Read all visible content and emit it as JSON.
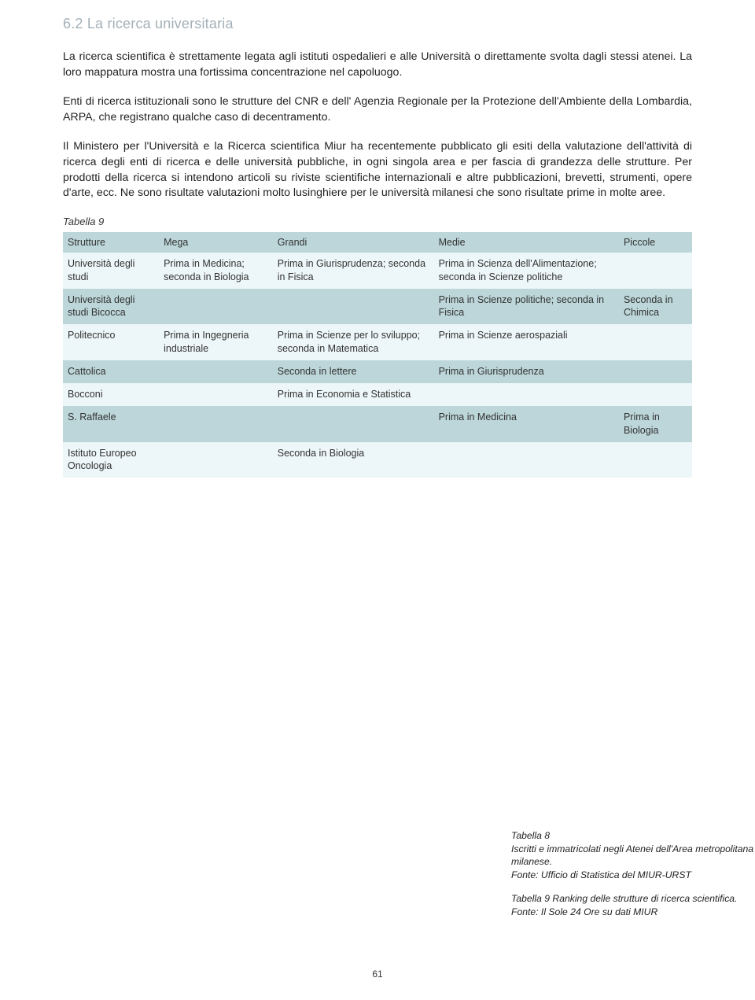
{
  "section": {
    "heading": "6.2 La ricerca universitaria",
    "para1": "La ricerca scientifica è strettamente legata agli istituti ospedalieri e alle Università o direttamente svolta dagli stessi atenei. La loro mappatura mostra una fortissima concentrazione nel capoluogo.",
    "para2": "Enti di ricerca istituzionali sono le strutture del CNR e dell' Agenzia Regionale per la Protezione dell'Ambiente della Lombardia, ARPA, che registrano qualche caso di decentramento.",
    "para3": "Il Ministero per l'Università e la Ricerca scientifica Miur ha recentemente pubblicato gli esiti della valutazione dell'attività di ricerca degli enti di ricerca e delle università pubbliche, in ogni singola area e per fascia di grandezza delle strutture. Per prodotti della ricerca si intendono articoli su riviste scientifiche internazionali e altre pubblicazioni, brevetti, strumenti, opere d'arte, ecc. Ne sono risultate valutazioni molto lusinghiere per le università milanesi che sono risultate prime in molte aree."
  },
  "table9": {
    "caption": "Tabella 9",
    "columns": [
      "Strutture",
      "Mega",
      "Grandi",
      "Medie",
      "Piccole"
    ],
    "rows": [
      {
        "c0": "Università degli studi",
        "c1": "Prima in Medicina; seconda in Biologia",
        "c2": "Prima in Giurisprudenza; seconda in Fisica",
        "c3": "Prima in Scienza dell'Alimentazione; seconda in Scienze politiche",
        "c4": ""
      },
      {
        "c0": "Università degli studi Bicocca",
        "c1": "",
        "c2": "",
        "c3": "Prima in Scienze politiche; seconda in Fisica",
        "c4": "Seconda in Chimica"
      },
      {
        "c0": "Politecnico",
        "c1": "Prima in Ingegneria industriale",
        "c2": "Prima in Scienze per lo sviluppo; seconda in Matematica",
        "c3": "Prima in Scienze aerospaziali",
        "c4": ""
      },
      {
        "c0": "Cattolica",
        "c1": "",
        "c2": "Seconda in lettere",
        "c3": "Prima in Giurisprudenza",
        "c4": ""
      },
      {
        "c0": "Bocconi",
        "c1": "",
        "c2": "Prima in Economia e Statistica",
        "c3": "",
        "c4": ""
      },
      {
        "c0": "S. Raffaele",
        "c1": "",
        "c2": "",
        "c3": "Prima in Medicina",
        "c4": "Prima in Biologia"
      },
      {
        "c0": "Istituto Europeo Oncologia",
        "c1": "",
        "c2": "Seconda in Biologia",
        "c3": "",
        "c4": ""
      }
    ],
    "header_bg": "#bcd6da",
    "row_light_bg": "#edf6f8",
    "row_blue_bg": "#bcd6da"
  },
  "footnotes": {
    "t8_title": "Tabella 8",
    "t8_body": "Iscritti e immatricolati negli Atenei dell'Area metropolitana milanese.",
    "t8_src": "Fonte: Ufficio di Statistica del MIUR-URST",
    "t9_body": "Tabella 9 Ranking delle strutture di ricerca scientifica.",
    "t9_src": "Fonte: Il Sole 24 Ore su dati MIUR"
  },
  "page_number": "61"
}
